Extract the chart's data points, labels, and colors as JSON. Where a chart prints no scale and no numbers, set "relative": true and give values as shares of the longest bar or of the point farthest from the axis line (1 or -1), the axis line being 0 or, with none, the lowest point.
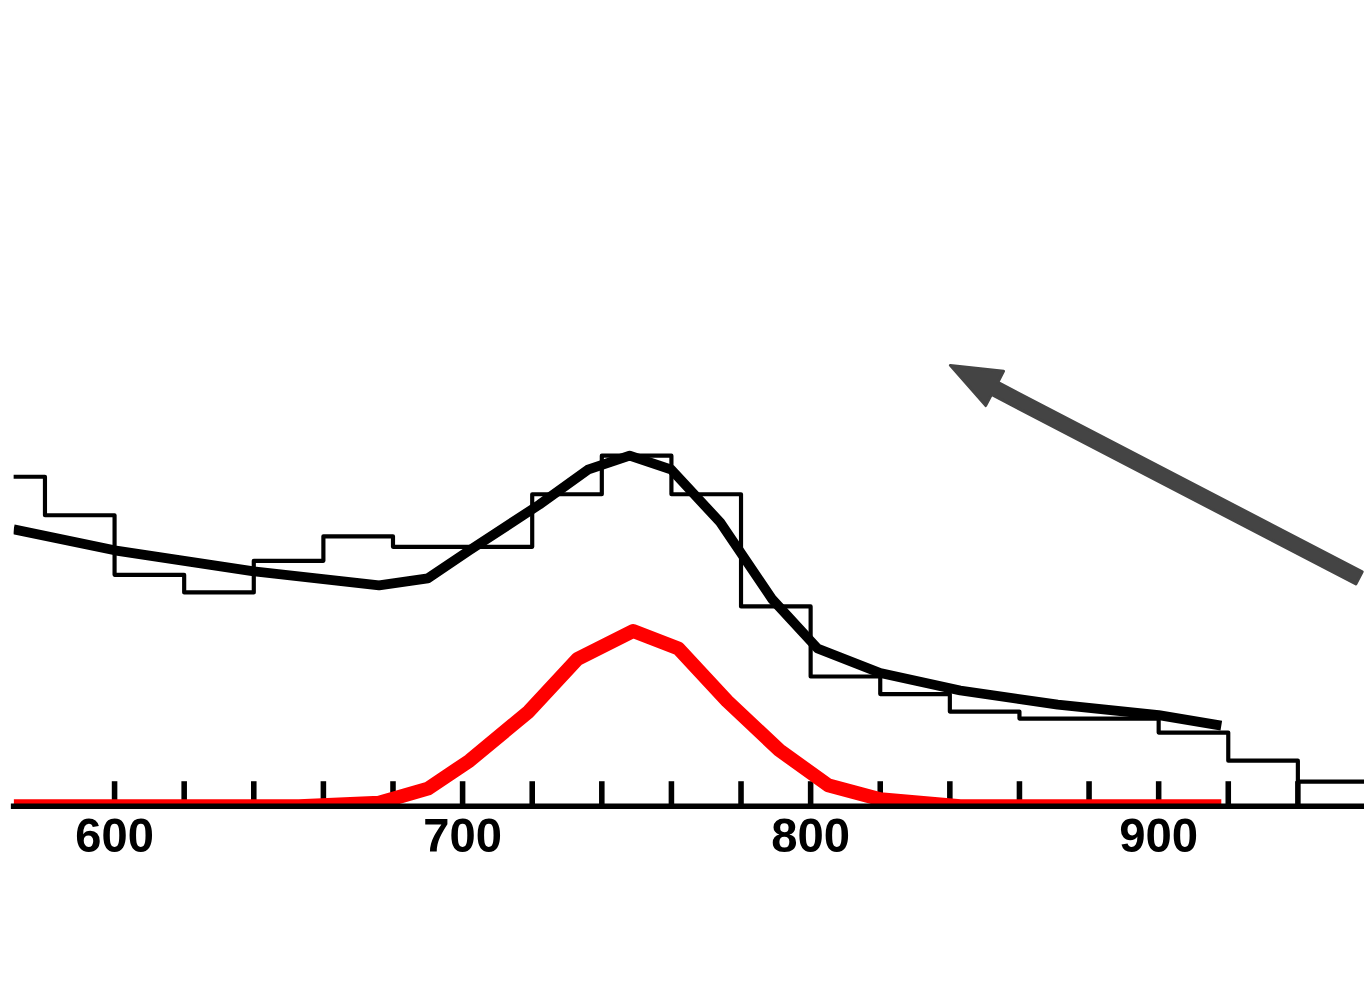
{
  "chart_data": {
    "type": "line",
    "relative": true,
    "tick_labels": "x",
    "xlim": [
      571,
      959
    ],
    "xticks": [
      600,
      {
        "value": 620,
        "label": null
      },
      {
        "value": 640,
        "label": null
      },
      {
        "value": 660,
        "label": null
      },
      {
        "value": 680,
        "label": null
      },
      700,
      {
        "value": 720,
        "label": null
      },
      {
        "value": 740,
        "label": null
      },
      {
        "value": 760,
        "label": null
      },
      {
        "value": 780,
        "label": null
      },
      800,
      {
        "value": 820,
        "label": null
      },
      {
        "value": 840,
        "label": null
      },
      {
        "value": 860,
        "label": null
      },
      {
        "value": 880,
        "label": null
      },
      900,
      {
        "value": 920,
        "label": null
      },
      {
        "value": 940,
        "label": null
      }
    ],
    "series": [
      {
        "type": "step",
        "color": "#000000",
        "x": [
          571,
          580,
          600,
          620,
          640,
          660,
          680,
          700,
          720,
          740,
          760,
          780,
          800,
          820,
          840,
          860,
          880,
          900,
          920,
          940,
          959
        ],
        "values": [
          0.94,
          0.83,
          0.66,
          0.61,
          0.7,
          0.77,
          0.74,
          0.74,
          0.89,
          1.0,
          0.89,
          0.57,
          0.37,
          0.32,
          0.27,
          0.25,
          0.25,
          0.21,
          0.13,
          0.07,
          0.07
        ]
      },
      {
        "color": "#000000",
        "x": [
          571,
          600,
          640,
          676,
          690,
          702,
          722,
          736,
          748,
          760,
          774,
          789,
          802,
          820,
          843,
          871,
          900,
          918
        ],
        "values": [
          0.79,
          0.73,
          0.67,
          0.63,
          0.65,
          0.73,
          0.86,
          0.96,
          1.0,
          0.96,
          0.81,
          0.59,
          0.45,
          0.38,
          0.33,
          0.29,
          0.26,
          0.23
        ]
      },
      {
        "color": "#ff0000",
        "x": [
          571,
          653,
          676,
          690,
          702,
          719,
          733,
          749,
          762,
          776,
          791,
          805,
          820,
          843,
          918
        ],
        "values": [
          0,
          0,
          0.01,
          0.05,
          0.13,
          0.27,
          0.42,
          0.5,
          0.45,
          0.3,
          0.16,
          0.06,
          0.02,
          0,
          0
        ]
      }
    ]
  }
}
